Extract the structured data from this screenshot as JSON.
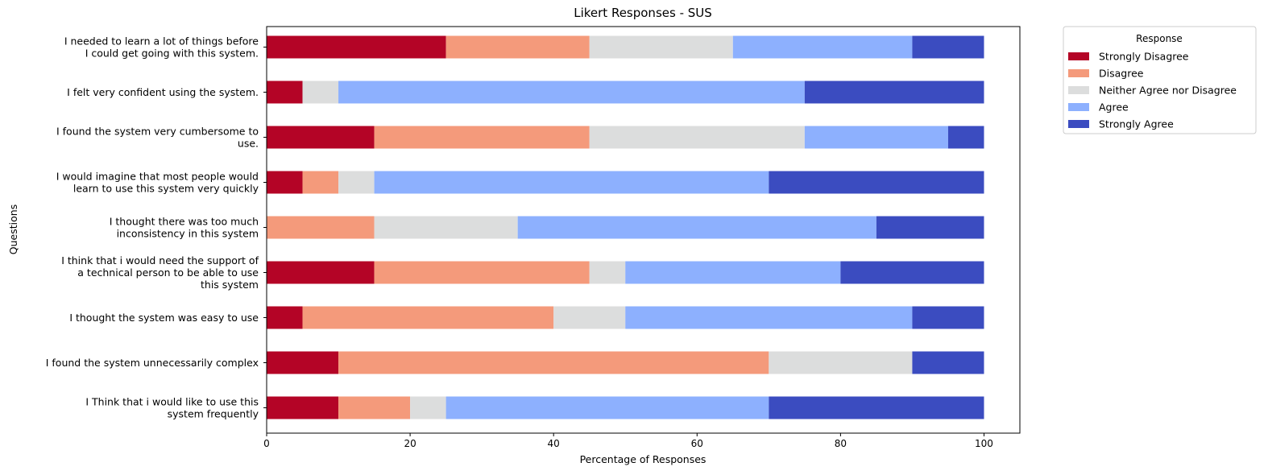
{
  "chart_data": {
    "type": "bar",
    "orientation": "horizontal",
    "stacked": true,
    "title": "Likert Responses - SUS",
    "xlabel": "Percentage of Responses",
    "ylabel": "Questions",
    "xlim": [
      0,
      105
    ],
    "xticks": [
      "0",
      "20",
      "40",
      "60",
      "80",
      "100"
    ],
    "grid": false,
    "legend": {
      "title": "Response",
      "placement": "outside-top-right"
    },
    "categories": [
      [
        "I needed to learn a lot of things before",
        "I could get going with this system."
      ],
      [
        "I felt very confident using the system."
      ],
      [
        "I found the system very cumbersome to",
        "use."
      ],
      [
        "I would imagine that most people would",
        "learn to use this system very quickly"
      ],
      [
        "I thought there was too much",
        "inconsistency in this system"
      ],
      [
        "I think that i would need the support of",
        "a technical person to be able to use",
        "this system"
      ],
      [
        "I thought the system was easy to use"
      ],
      [
        "I found the system unnecessarily complex"
      ],
      [
        "I Think that i would like to use this",
        "system frequently"
      ]
    ],
    "series": [
      {
        "name": "Strongly Disagree",
        "color": "#b40426",
        "values": [
          25,
          5,
          15,
          5,
          0,
          15,
          5,
          10,
          10
        ]
      },
      {
        "name": "Disagree",
        "color": "#f49a7b",
        "values": [
          20,
          0,
          30,
          5,
          15,
          30,
          35,
          60,
          10
        ]
      },
      {
        "name": "Neither Agree nor Disagree",
        "color": "#dcdddd",
        "values": [
          20,
          5,
          30,
          5,
          20,
          5,
          10,
          20,
          5
        ]
      },
      {
        "name": "Agree",
        "color": "#8db0fe",
        "values": [
          25,
          65,
          20,
          55,
          50,
          30,
          40,
          0,
          45
        ]
      },
      {
        "name": "Strongly Agree",
        "color": "#3b4cc0",
        "values": [
          10,
          25,
          5,
          30,
          15,
          20,
          10,
          10,
          30
        ]
      }
    ]
  }
}
